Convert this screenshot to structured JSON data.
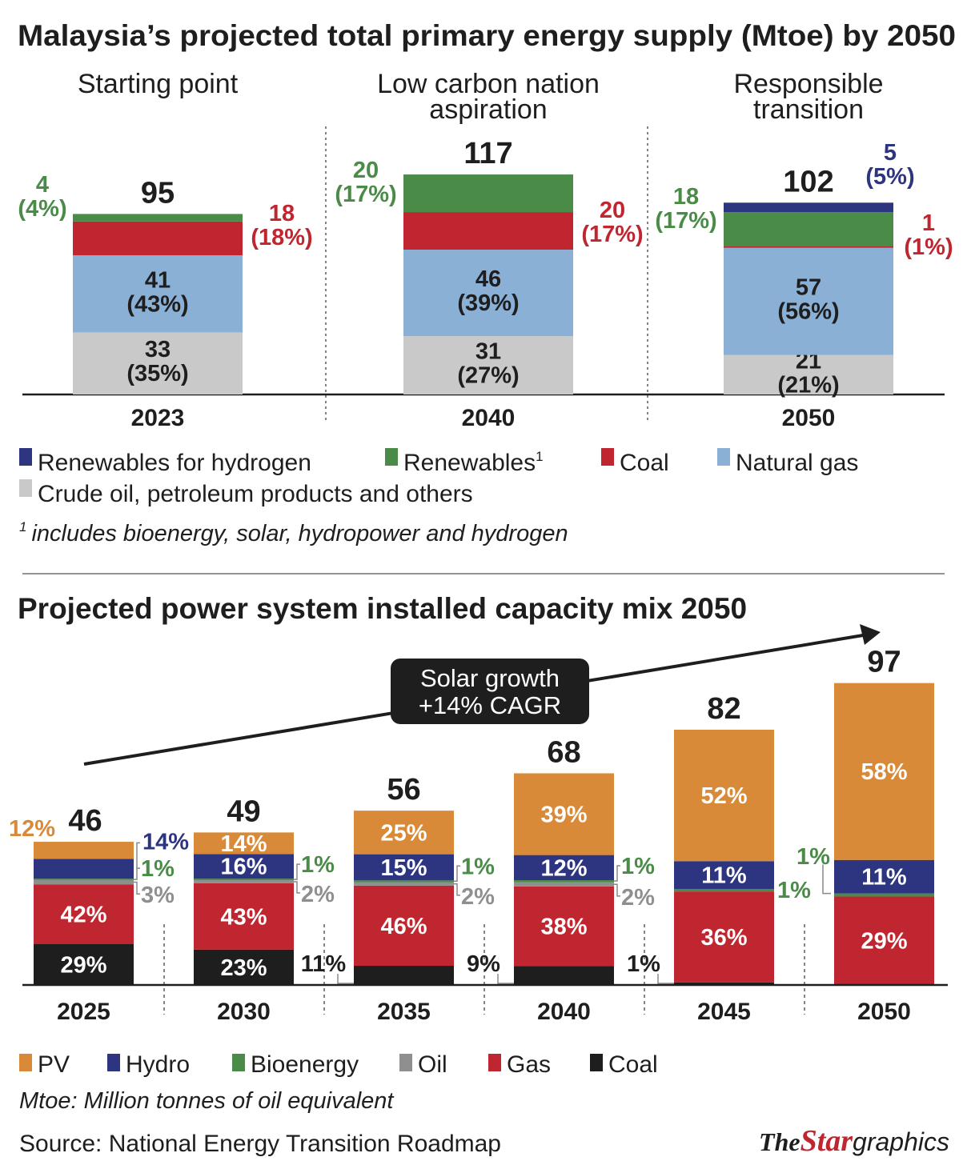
{
  "top_title": "Malaysia’s projected total primary energy supply (Mtoe) by 2050",
  "bottom_title": "Projected power system installed capacity mix 2050",
  "colors": {
    "renewables_hydrogen": "#2e3580",
    "renewables": "#4a8b48",
    "coal": "#bf2630",
    "natural_gas": "#8bb0d6",
    "crude_oil": "#c9c9c9",
    "pv": "#d88a38",
    "hydro": "#2e3580",
    "bioenergy": "#4a8b48",
    "oil": "#8f8f8f",
    "gas": "#bf2630",
    "coal_power": "#1e1e1e"
  },
  "top_legend": [
    {
      "label": "Renewables for hydrogen",
      "color": "#2e3580"
    },
    {
      "label": "Renewables",
      "sup": "1",
      "color": "#4a8b48"
    },
    {
      "label": "Coal",
      "color": "#bf2630"
    },
    {
      "label": "Natural gas",
      "color": "#8bb0d6"
    },
    {
      "label": "Crude oil, petroleum products and others",
      "color": "#c9c9c9"
    }
  ],
  "footnote": {
    "sup": "1",
    "text": "includes bioenergy, solar, hydropower and hydrogen"
  },
  "bottom_legend": [
    {
      "label": "PV",
      "color": "#d88a38"
    },
    {
      "label": "Hydro",
      "color": "#2e3580"
    },
    {
      "label": "Bioenergy",
      "color": "#4a8b48"
    },
    {
      "label": "Oil",
      "color": "#8f8f8f"
    },
    {
      "label": "Gas",
      "color": "#bf2630"
    },
    {
      "label": "Coal",
      "color": "#1e1e1e"
    }
  ],
  "mtoe_note": "Mtoe: Million tonnes of oil equivalent",
  "source": "Source: National Energy Transition Roadmap",
  "logo": {
    "the": "The",
    "star": "Star",
    "graphics": "graphics"
  },
  "callout": {
    "line1": "Solar growth",
    "line2": "+14% CAGR"
  },
  "chart_data": [
    {
      "type": "bar",
      "stacked": true,
      "title": "Malaysia’s projected total primary energy supply (Mtoe) by 2050",
      "unit": "Mtoe",
      "categories": [
        "2023",
        "2040",
        "2050"
      ],
      "scenario_headers": [
        [
          "Starting point"
        ],
        [
          "Low carbon nation",
          "aspiration"
        ],
        [
          "Responsible",
          "transition"
        ]
      ],
      "totals": [
        95,
        117,
        102
      ],
      "series": [
        {
          "name": "Crude oil, petroleum products and others",
          "key": "crude_oil",
          "values": [
            33,
            31,
            21
          ],
          "pct": [
            "35%",
            "27%",
            "21%"
          ]
        },
        {
          "name": "Natural gas",
          "key": "natural_gas",
          "values": [
            41,
            46,
            57
          ],
          "pct": [
            "43%",
            "39%",
            "56%"
          ]
        },
        {
          "name": "Coal",
          "key": "coal",
          "values": [
            18,
            20,
            1
          ],
          "pct": [
            "18%",
            "17%",
            "1%"
          ]
        },
        {
          "name": "Renewables",
          "key": "renewables",
          "values": [
            4,
            20,
            18
          ],
          "pct": [
            "4%",
            "17%",
            "17%"
          ]
        },
        {
          "name": "Renewables for hydrogen",
          "key": "renewables_hydrogen",
          "values": [
            0,
            0,
            5
          ],
          "pct": [
            "",
            "",
            "5%"
          ]
        }
      ]
    },
    {
      "type": "bar",
      "stacked": true,
      "title": "Projected power system installed capacity mix 2050",
      "categories": [
        "2025",
        "2030",
        "2035",
        "2040",
        "2045",
        "2050"
      ],
      "totals": [
        46,
        49,
        56,
        68,
        82,
        97
      ],
      "series": [
        {
          "name": "Coal",
          "key": "coal_power",
          "pct": [
            29,
            23,
            11,
            9,
            1,
            0
          ]
        },
        {
          "name": "Gas",
          "key": "gas",
          "pct": [
            42,
            43,
            46,
            38,
            36,
            29
          ]
        },
        {
          "name": "Oil",
          "key": "oil",
          "pct": [
            3,
            2,
            2,
            2,
            0,
            0
          ]
        },
        {
          "name": "Bioenergy",
          "key": "bioenergy",
          "pct": [
            1,
            1,
            1,
            1,
            1,
            1
          ]
        },
        {
          "name": "Hydro",
          "key": "hydro",
          "pct": [
            14,
            16,
            15,
            12,
            11,
            11
          ]
        },
        {
          "name": "PV",
          "key": "pv",
          "pct": [
            12,
            14,
            25,
            39,
            52,
            58
          ]
        }
      ],
      "annotation": "Solar growth +14% CAGR"
    }
  ]
}
